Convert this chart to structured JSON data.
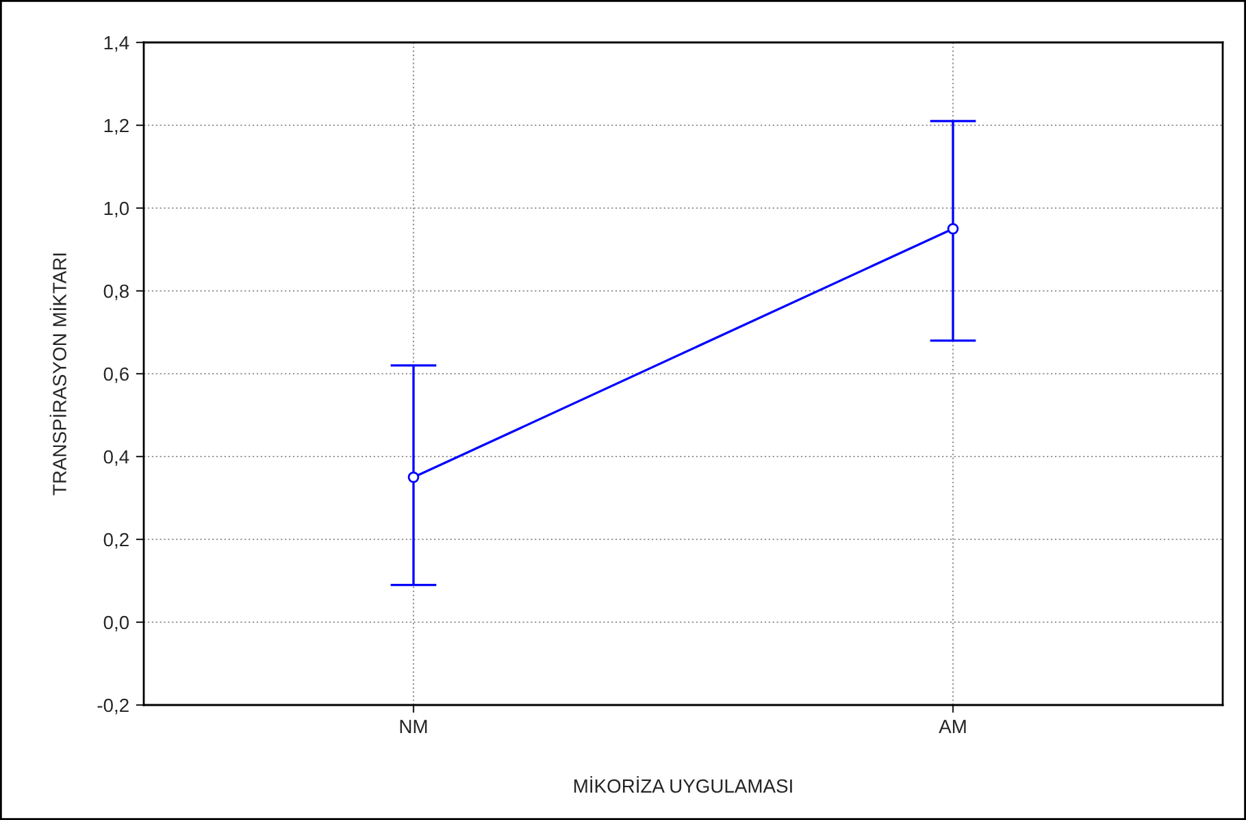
{
  "chart_data": {
    "type": "line",
    "xlabel": "MİKORİZA UYGULAMASI",
    "ylabel": "TRANSPİRASYON MİKTARI",
    "categories": [
      "NM",
      "AM"
    ],
    "series": [
      {
        "color": "#0000ff",
        "values": [
          0.35,
          0.95
        ],
        "errors": [
          [
            0.09,
            0.62
          ],
          [
            0.68,
            1.21
          ]
        ]
      }
    ],
    "ylim": [
      -0.2,
      1.4
    ],
    "yticks": [
      {
        "value": -0.2,
        "label": "-0,2"
      },
      {
        "value": 0,
        "label": "0,0"
      },
      {
        "value": 0.2,
        "label": "0,2"
      },
      {
        "value": 0.4,
        "label": "0,4"
      },
      {
        "value": 0.6,
        "label": "0,6"
      },
      {
        "value": 0.8,
        "label": "0,8"
      },
      {
        "value": 1.0,
        "label": "1,0"
      },
      {
        "value": 1.2,
        "label": "1,2"
      },
      {
        "value": 1.4,
        "label": "1,4"
      }
    ],
    "grid": true,
    "marker": "circle",
    "line_style": "solid"
  }
}
